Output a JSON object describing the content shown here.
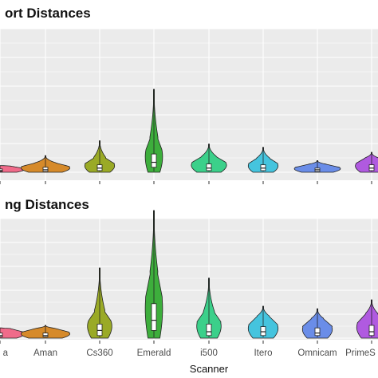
{
  "chart_data": {
    "type": "violin",
    "xlabel": "Scanner",
    "categories": [
      "a",
      "Aman",
      "Cs360",
      "Emerald",
      "i500",
      "Itero",
      "Omnicam",
      "PrimeS"
    ],
    "colors": [
      "#f06b8a",
      "#d68a2a",
      "#9aaa26",
      "#3dae3c",
      "#3bd08a",
      "#45c4de",
      "#6a8de8",
      "#b05ae0"
    ],
    "panels": [
      {
        "title": "ort Distances",
        "violins": [
          {
            "category": "a",
            "max": 0.08,
            "q1": 0.01,
            "median": 0.02,
            "q3": 0.04,
            "max_width": 0.9
          },
          {
            "category": "Aman",
            "max": 0.2,
            "q1": 0.01,
            "median": 0.03,
            "q3": 0.06,
            "max_width": 0.9
          },
          {
            "category": "Cs360",
            "max": 0.38,
            "q1": 0.02,
            "median": 0.05,
            "q3": 0.09,
            "max_width": 0.55
          },
          {
            "category": "Emerald",
            "max": 1.0,
            "q1": 0.06,
            "median": 0.12,
            "q3": 0.22,
            "max_width": 0.32
          },
          {
            "category": "i500",
            "max": 0.34,
            "q1": 0.02,
            "median": 0.05,
            "q3": 0.1,
            "max_width": 0.65
          },
          {
            "category": "Itero",
            "max": 0.3,
            "q1": 0.02,
            "median": 0.05,
            "q3": 0.09,
            "max_width": 0.55
          },
          {
            "category": "Omnicam",
            "max": 0.14,
            "q1": 0.01,
            "median": 0.03,
            "q3": 0.05,
            "max_width": 0.85
          },
          {
            "category": "PrimeS",
            "max": 0.24,
            "q1": 0.02,
            "median": 0.05,
            "q3": 0.09,
            "max_width": 0.6
          }
        ]
      },
      {
        "title": "ng Distances",
        "violins": [
          {
            "category": "a",
            "max": 0.08,
            "q1": 0.01,
            "median": 0.02,
            "q3": 0.04,
            "max_width": 0.9
          },
          {
            "category": "Aman",
            "max": 0.1,
            "q1": 0.01,
            "median": 0.02,
            "q3": 0.04,
            "max_width": 0.9
          },
          {
            "category": "Cs360",
            "max": 0.55,
            "q1": 0.02,
            "median": 0.06,
            "q3": 0.11,
            "max_width": 0.45
          },
          {
            "category": "Emerald",
            "max": 1.0,
            "q1": 0.06,
            "median": 0.14,
            "q3": 0.27,
            "max_width": 0.32
          },
          {
            "category": "i500",
            "max": 0.47,
            "q1": 0.02,
            "median": 0.05,
            "q3": 0.11,
            "max_width": 0.45
          },
          {
            "category": "Itero",
            "max": 0.25,
            "q1": 0.02,
            "median": 0.05,
            "q3": 0.09,
            "max_width": 0.55
          },
          {
            "category": "Omnicam",
            "max": 0.23,
            "q1": 0.02,
            "median": 0.04,
            "q3": 0.08,
            "max_width": 0.55
          },
          {
            "category": "PrimeS",
            "max": 0.3,
            "q1": 0.02,
            "median": 0.05,
            "q3": 0.1,
            "max_width": 0.55
          }
        ]
      }
    ]
  }
}
